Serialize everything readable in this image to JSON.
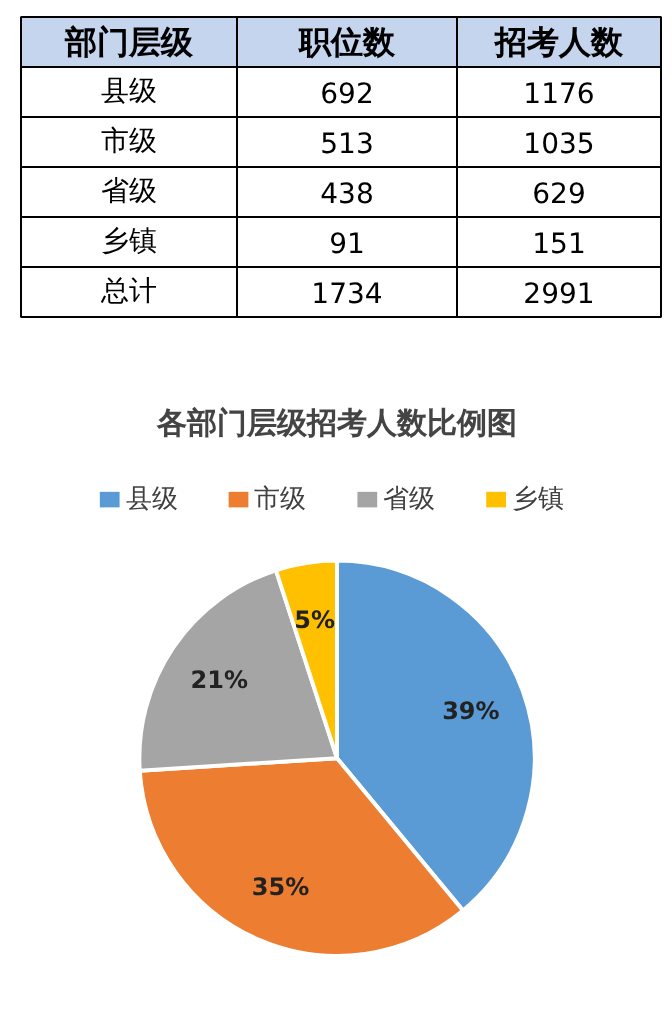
{
  "chart_data": [
    {
      "type": "other",
      "categories": [
        "部门层级",
        "职位数",
        "招考人数"
      ],
      "annotations": [
        "县级",
        "692",
        "1176",
        "市级",
        "513",
        "1035",
        "省级",
        "438",
        "629",
        "乡镇",
        "91",
        "151",
        "总计",
        "1734",
        "2991"
      ]
    },
    {
      "type": "pie",
      "title": "各部门层级招考人数比例图",
      "categories": [
        "县级",
        "市级",
        "省级",
        "乡镇"
      ],
      "values": [
        39,
        35,
        21,
        5
      ],
      "colors": [
        "#5b9bd5",
        "#ed7d31",
        "#a5a5a5",
        "#ffc000"
      ],
      "value_labels": [
        "39%",
        "35%",
        "21%",
        "5%"
      ],
      "legend": "top"
    }
  ]
}
